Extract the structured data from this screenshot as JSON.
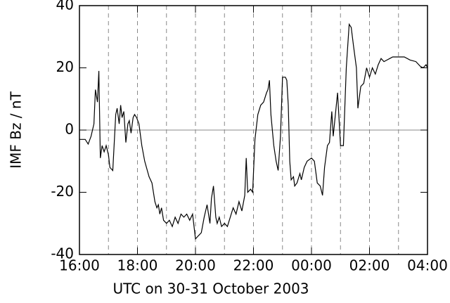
{
  "chart_data": {
    "type": "line",
    "xlabel": "UTC on 30-31 October 2003",
    "ylabel": "IMF Bz / nT",
    "xlim": [
      16,
      28
    ],
    "ylim": [
      -40,
      40
    ],
    "xticks": [
      {
        "value": 16,
        "label": "16:00"
      },
      {
        "value": 18,
        "label": "18:00"
      },
      {
        "value": 20,
        "label": "20:00"
      },
      {
        "value": 22,
        "label": "22:00"
      },
      {
        "value": 24,
        "label": "00:00"
      },
      {
        "value": 26,
        "label": "02:00"
      },
      {
        "value": 28,
        "label": "04:00"
      }
    ],
    "yticks": [
      -40,
      -20,
      0,
      20,
      40
    ],
    "xgrid": [
      17,
      18,
      19,
      20,
      21,
      22,
      23,
      24,
      25,
      26,
      27
    ],
    "hline": 0,
    "series": [
      {
        "color": "#000000",
        "x": [
          16.0,
          16.2,
          16.3,
          16.4,
          16.5,
          16.55,
          16.62,
          16.67,
          16.72,
          16.78,
          16.85,
          16.92,
          17.0,
          17.05,
          17.15,
          17.25,
          17.3,
          17.37,
          17.42,
          17.47,
          17.53,
          17.6,
          17.67,
          17.72,
          17.78,
          17.85,
          17.9,
          17.97,
          18.05,
          18.15,
          18.25,
          18.4,
          18.5,
          18.6,
          18.67,
          18.72,
          18.77,
          18.83,
          18.9,
          19.0,
          19.1,
          19.2,
          19.3,
          19.4,
          19.5,
          19.6,
          19.7,
          19.8,
          19.9,
          20.0,
          20.1,
          20.2,
          20.3,
          20.4,
          20.5,
          20.55,
          20.62,
          20.7,
          20.75,
          20.82,
          20.9,
          21.0,
          21.1,
          21.2,
          21.3,
          21.4,
          21.5,
          21.6,
          21.7,
          21.75,
          21.8,
          21.9,
          21.97,
          22.05,
          22.15,
          22.25,
          22.35,
          22.45,
          22.5,
          22.55,
          22.6,
          22.7,
          22.78,
          22.85,
          22.93,
          23.0,
          23.1,
          23.15,
          23.2,
          23.25,
          23.3,
          23.38,
          23.42,
          23.5,
          23.6,
          23.65,
          23.75,
          23.85,
          24.0,
          24.1,
          24.2,
          24.3,
          24.38,
          24.45,
          24.55,
          24.62,
          24.7,
          24.75,
          24.9,
          25.0,
          25.05,
          25.1,
          25.2,
          25.3,
          25.37,
          25.45,
          25.55,
          25.6,
          25.7,
          25.8,
          25.9,
          26.0,
          26.1,
          26.2,
          26.3,
          26.4,
          26.5,
          26.6,
          26.7,
          26.8,
          27.0,
          27.2,
          27.4,
          27.6,
          27.75,
          27.85,
          27.95,
          28.0
        ],
        "values": [
          -3,
          -3,
          -4.5,
          -2,
          2,
          13,
          9,
          19,
          -9,
          -5,
          -7,
          -5,
          -8,
          -12,
          -13,
          5,
          7,
          2,
          8,
          4,
          6,
          -4,
          2,
          3,
          -1,
          4,
          5,
          4,
          2,
          -5,
          -10,
          -15,
          -17,
          -23,
          -25,
          -24,
          -27,
          -25,
          -29,
          -30,
          -29,
          -31,
          -28,
          -30,
          -27,
          -28,
          -27,
          -29,
          -27,
          -35,
          -34,
          -33,
          -28,
          -24,
          -30,
          -22,
          -18,
          -28,
          -30,
          -28,
          -31,
          -30,
          -31,
          -28,
          -25,
          -27,
          -23,
          -26,
          -21,
          -9,
          -20,
          -19,
          -20,
          -3,
          5,
          8,
          9,
          12,
          13,
          16,
          5,
          -5,
          -10,
          -13,
          -2,
          17,
          17,
          16,
          8,
          -10,
          -16,
          -15,
          -18,
          -17,
          -14,
          -16,
          -12,
          -10,
          -9,
          -10,
          -17,
          -18,
          -21,
          -12,
          -5,
          -4,
          6,
          -2,
          12,
          -5,
          -5,
          -5,
          20,
          34,
          33,
          27,
          20,
          7,
          14,
          15,
          20,
          17,
          20,
          18,
          21,
          23,
          22,
          22.5,
          23,
          23.5,
          23.5,
          23.5,
          22.5,
          22,
          20.5,
          20,
          21,
          20
        ]
      }
    ]
  }
}
